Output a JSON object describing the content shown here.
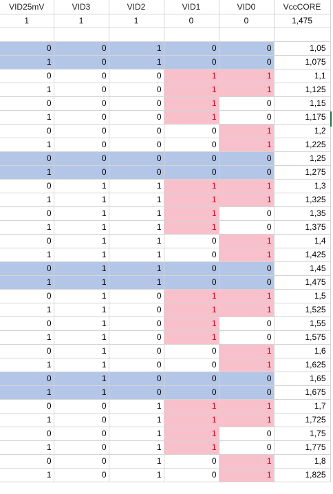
{
  "headers": [
    "VID25mV",
    "VID3",
    "VID2",
    "VID1",
    "VID0",
    "VccCORE"
  ],
  "summary": [
    "1",
    "1",
    "1",
    "0",
    "0",
    "1,475"
  ],
  "colors": {
    "blue": "#b4c6e7",
    "pink": "#f8c0cb",
    "red_text": "#d0021b",
    "grid": "#d4d4d4"
  },
  "rows": [
    {
      "v": [
        "0",
        "0",
        "1",
        "0",
        "0",
        "1,05"
      ],
      "blue": true,
      "pink": []
    },
    {
      "v": [
        "1",
        "0",
        "1",
        "0",
        "0",
        "1,075"
      ],
      "blue": true,
      "pink": []
    },
    {
      "v": [
        "0",
        "0",
        "0",
        "1",
        "1",
        "1,1"
      ],
      "blue": false,
      "pink": [
        3,
        4
      ]
    },
    {
      "v": [
        "1",
        "0",
        "0",
        "1",
        "1",
        "1,125"
      ],
      "blue": false,
      "pink": [
        3,
        4
      ]
    },
    {
      "v": [
        "0",
        "0",
        "0",
        "1",
        "0",
        "1,15"
      ],
      "blue": false,
      "pink": [
        3
      ]
    },
    {
      "v": [
        "1",
        "0",
        "0",
        "1",
        "0",
        "1,175"
      ],
      "blue": false,
      "pink": [
        3
      ]
    },
    {
      "v": [
        "0",
        "0",
        "0",
        "0",
        "1",
        "1,2"
      ],
      "blue": false,
      "pink": [
        4
      ]
    },
    {
      "v": [
        "1",
        "0",
        "0",
        "0",
        "1",
        "1,225"
      ],
      "blue": false,
      "pink": [
        4
      ]
    },
    {
      "v": [
        "0",
        "0",
        "0",
        "0",
        "0",
        "1,25"
      ],
      "blue": true,
      "pink": []
    },
    {
      "v": [
        "1",
        "0",
        "0",
        "0",
        "0",
        "1,275"
      ],
      "blue": true,
      "pink": []
    },
    {
      "v": [
        "0",
        "1",
        "1",
        "1",
        "1",
        "1,3"
      ],
      "blue": false,
      "pink": [
        3,
        4
      ]
    },
    {
      "v": [
        "1",
        "1",
        "1",
        "1",
        "1",
        "1,325"
      ],
      "blue": false,
      "pink": [
        3,
        4
      ]
    },
    {
      "v": [
        "0",
        "1",
        "1",
        "1",
        "0",
        "1,35"
      ],
      "blue": false,
      "pink": [
        3
      ]
    },
    {
      "v": [
        "1",
        "1",
        "1",
        "1",
        "0",
        "1,375"
      ],
      "blue": false,
      "pink": [
        3
      ]
    },
    {
      "v": [
        "0",
        "1",
        "1",
        "0",
        "1",
        "1,4"
      ],
      "blue": false,
      "pink": [
        4
      ]
    },
    {
      "v": [
        "1",
        "1",
        "1",
        "0",
        "1",
        "1,425"
      ],
      "blue": false,
      "pink": [
        4
      ]
    },
    {
      "v": [
        "0",
        "1",
        "1",
        "0",
        "0",
        "1,45"
      ],
      "blue": true,
      "pink": []
    },
    {
      "v": [
        "1",
        "1",
        "1",
        "0",
        "0",
        "1,475"
      ],
      "blue": true,
      "pink": []
    },
    {
      "v": [
        "0",
        "1",
        "0",
        "1",
        "1",
        "1,5"
      ],
      "blue": false,
      "pink": [
        3,
        4
      ]
    },
    {
      "v": [
        "1",
        "1",
        "0",
        "1",
        "1",
        "1,525"
      ],
      "blue": false,
      "pink": [
        3,
        4
      ]
    },
    {
      "v": [
        "0",
        "1",
        "0",
        "1",
        "0",
        "1,55"
      ],
      "blue": false,
      "pink": [
        3
      ]
    },
    {
      "v": [
        "1",
        "1",
        "0",
        "1",
        "0",
        "1,575"
      ],
      "blue": false,
      "pink": [
        3
      ]
    },
    {
      "v": [
        "0",
        "1",
        "0",
        "0",
        "1",
        "1,6"
      ],
      "blue": false,
      "pink": [
        4
      ]
    },
    {
      "v": [
        "1",
        "1",
        "0",
        "0",
        "1",
        "1,625"
      ],
      "blue": false,
      "pink": [
        4
      ]
    },
    {
      "v": [
        "0",
        "1",
        "0",
        "0",
        "0",
        "1,65"
      ],
      "blue": true,
      "pink": []
    },
    {
      "v": [
        "1",
        "1",
        "0",
        "0",
        "0",
        "1,675"
      ],
      "blue": true,
      "pink": []
    },
    {
      "v": [
        "0",
        "0",
        "1",
        "1",
        "1",
        "1,7"
      ],
      "blue": false,
      "pink": [
        3,
        4
      ]
    },
    {
      "v": [
        "1",
        "0",
        "1",
        "1",
        "1",
        "1,725"
      ],
      "blue": false,
      "pink": [
        3,
        4
      ]
    },
    {
      "v": [
        "0",
        "0",
        "1",
        "1",
        "0",
        "1,75"
      ],
      "blue": false,
      "pink": [
        3
      ]
    },
    {
      "v": [
        "1",
        "0",
        "1",
        "1",
        "0",
        "1,775"
      ],
      "blue": false,
      "pink": [
        3
      ]
    },
    {
      "v": [
        "0",
        "0",
        "1",
        "0",
        "1",
        "1,8"
      ],
      "blue": false,
      "pink": [
        4
      ]
    },
    {
      "v": [
        "1",
        "0",
        "1",
        "0",
        "1",
        "1,825"
      ],
      "blue": false,
      "pink": [
        4
      ]
    }
  ]
}
